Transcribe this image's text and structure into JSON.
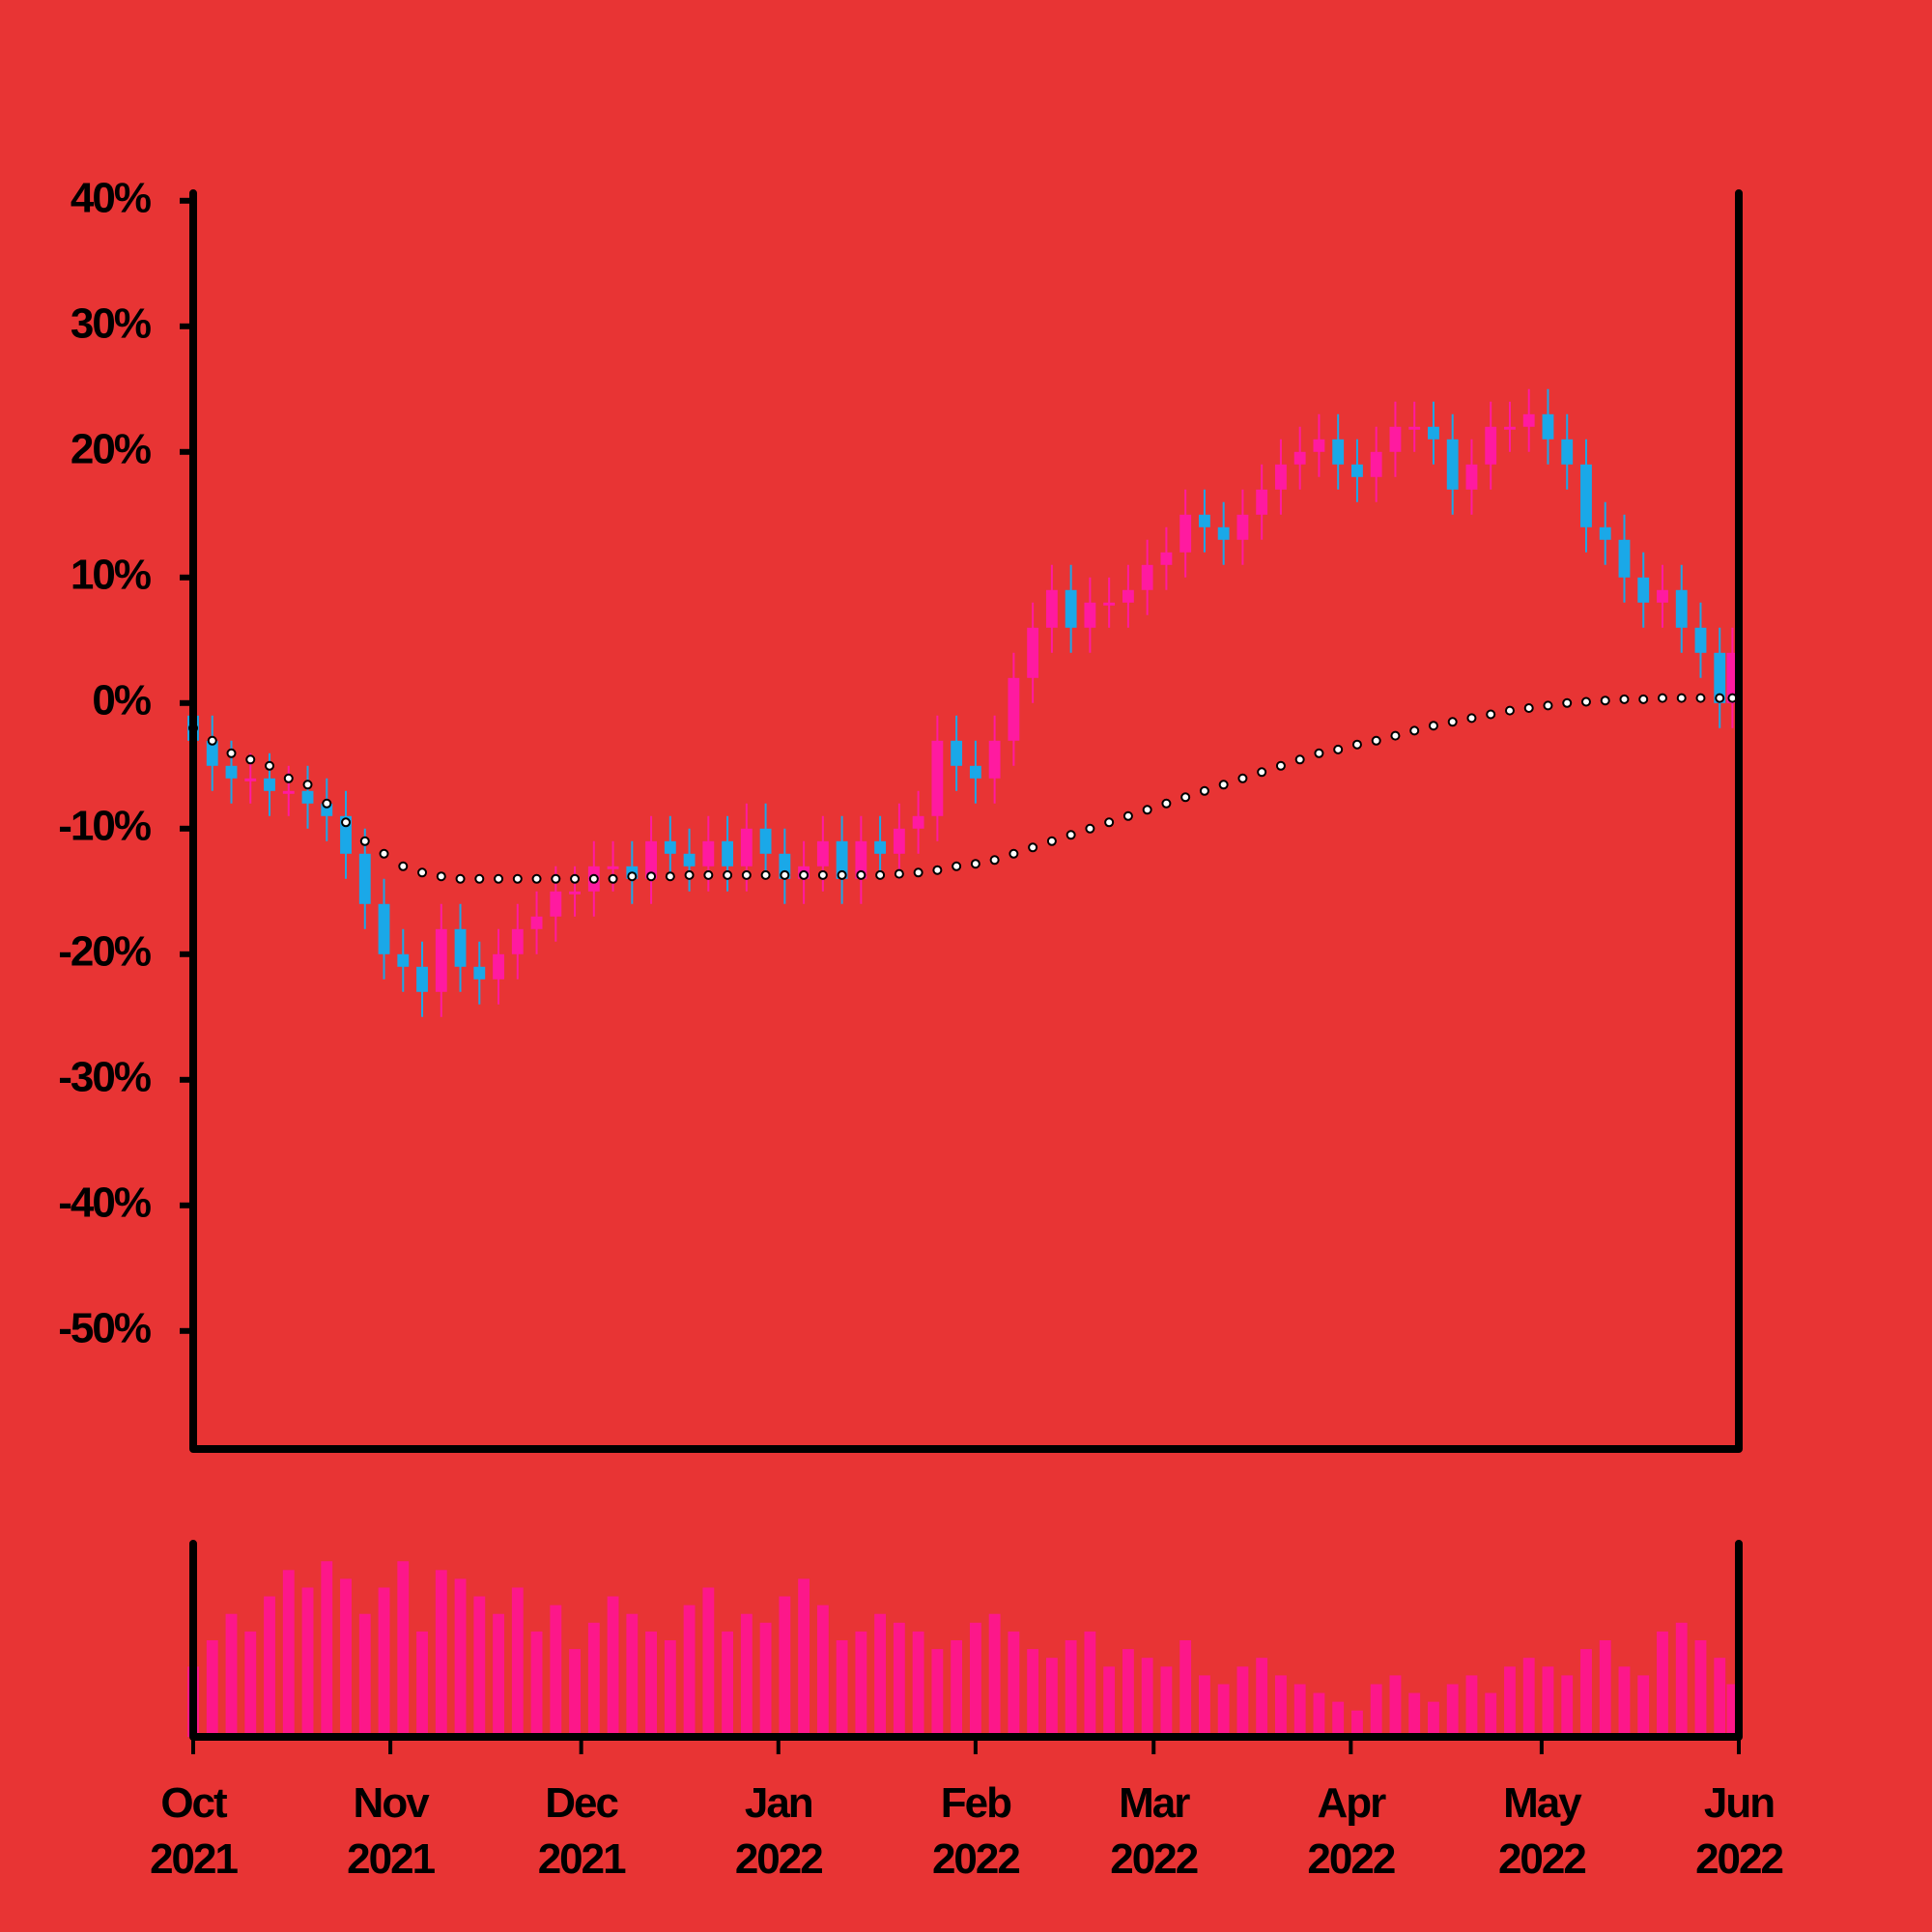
{
  "chart_data": {
    "type": "candlestick",
    "x": [
      0,
      3,
      6,
      9,
      12,
      15,
      18,
      21,
      24,
      27,
      30,
      33,
      36,
      39,
      42,
      45,
      48,
      51,
      54,
      57,
      60,
      63,
      66,
      69,
      72,
      75,
      78,
      81,
      84,
      87,
      90,
      93,
      96,
      99,
      102,
      105,
      108,
      111,
      114,
      117,
      120,
      123,
      126,
      129,
      132,
      135,
      138,
      141,
      144,
      147,
      150,
      153,
      156,
      159,
      162,
      165,
      168,
      171,
      174,
      177,
      180,
      183,
      186,
      189,
      192,
      195,
      198,
      201,
      204,
      207,
      210,
      213,
      216,
      219,
      222,
      225,
      228,
      231,
      234,
      237,
      240,
      242
    ],
    "open": [
      -1,
      -3,
      -5,
      -6,
      -6,
      -7,
      -7,
      -8,
      -9,
      -12,
      -16,
      -20,
      -21,
      -23,
      -18,
      -21,
      -22,
      -20,
      -18,
      -17,
      -15,
      -15,
      -13,
      -13,
      -14,
      -11,
      -12,
      -13,
      -11,
      -13,
      -10,
      -12,
      -14,
      -13,
      -11,
      -14,
      -11,
      -12,
      -10,
      -9,
      -3,
      -5,
      -6,
      -3,
      2,
      6,
      9,
      6,
      8,
      8,
      9,
      11,
      12,
      15,
      14,
      13,
      15,
      17,
      19,
      20,
      21,
      19,
      18,
      20,
      22,
      22,
      21,
      17,
      19,
      22,
      22,
      23,
      21,
      19,
      14,
      13,
      10,
      8,
      9,
      6,
      4,
      0
    ],
    "high": [
      1,
      -1,
      -3,
      -4,
      -4,
      -5,
      -5,
      -6,
      -7,
      -10,
      -14,
      -18,
      -19,
      -16,
      -16,
      -19,
      -18,
      -16,
      -15,
      -13,
      -13,
      -11,
      -11,
      -11,
      -9,
      -9,
      -10,
      -9,
      -9,
      -8,
      -8,
      -10,
      -11,
      -9,
      -9,
      -9,
      -9,
      -8,
      -7,
      -1,
      -1,
      -3,
      -1,
      4,
      8,
      11,
      11,
      10,
      10,
      11,
      13,
      14,
      17,
      17,
      16,
      17,
      19,
      21,
      22,
      23,
      23,
      21,
      22,
      24,
      24,
      24,
      23,
      21,
      24,
      24,
      25,
      25,
      23,
      21,
      16,
      15,
      12,
      11,
      11,
      8,
      6,
      6
    ],
    "low": [
      -5,
      -7,
      -8,
      -8,
      -9,
      -9,
      -10,
      -11,
      -14,
      -18,
      -22,
      -23,
      -25,
      -25,
      -23,
      -24,
      -24,
      -22,
      -20,
      -19,
      -17,
      -17,
      -15,
      -16,
      -16,
      -14,
      -15,
      -15,
      -15,
      -15,
      -14,
      -16,
      -16,
      -15,
      -16,
      -16,
      -14,
      -14,
      -12,
      -11,
      -7,
      -8,
      -8,
      -5,
      0,
      4,
      4,
      4,
      6,
      6,
      7,
      9,
      10,
      12,
      11,
      11,
      13,
      15,
      17,
      18,
      17,
      16,
      16,
      18,
      20,
      19,
      15,
      15,
      17,
      20,
      20,
      19,
      17,
      12,
      11,
      8,
      6,
      6,
      4,
      2,
      -2,
      -2
    ],
    "close": [
      -3,
      -5,
      -6,
      -6,
      -7,
      -7,
      -8,
      -9,
      -12,
      -16,
      -20,
      -21,
      -23,
      -18,
      -21,
      -22,
      -20,
      -18,
      -17,
      -15,
      -15,
      -13,
      -13,
      -14,
      -11,
      -12,
      -13,
      -11,
      -13,
      -10,
      -12,
      -14,
      -13,
      -11,
      -14,
      -11,
      -12,
      -10,
      -9,
      -3,
      -5,
      -6,
      -3,
      2,
      6,
      9,
      6,
      8,
      8,
      9,
      11,
      12,
      15,
      14,
      13,
      15,
      17,
      19,
      20,
      21,
      19,
      18,
      20,
      22,
      22,
      21,
      17,
      19,
      22,
      22,
      23,
      21,
      19,
      14,
      13,
      10,
      8,
      9,
      6,
      4,
      0,
      4
    ],
    "up_color": "#ff1aa0",
    "down_color": "#1aa8e8",
    "xlim": [
      0,
      243
    ],
    "xticks": [
      {
        "value": 0,
        "label": "Oct 2021"
      },
      {
        "value": 31,
        "label": "Nov 2021"
      },
      {
        "value": 61,
        "label": "Dec 2021"
      },
      {
        "value": 92,
        "label": "Jan 2022"
      },
      {
        "value": 123,
        "label": "Feb 2022"
      },
      {
        "value": 151,
        "label": "Mar 2022"
      },
      {
        "value": 182,
        "label": "Apr 2022"
      },
      {
        "value": 212,
        "label": "May 2022"
      },
      {
        "value": 243,
        "label": "Jun 2022"
      }
    ],
    "ylim": [
      -59.4,
      40.6
    ],
    "yticks": [
      {
        "value": 40,
        "label": "40%"
      },
      {
        "value": 30,
        "label": "30%"
      },
      {
        "value": 20,
        "label": "20%"
      },
      {
        "value": 10,
        "label": "10%"
      },
      {
        "value": 0,
        "label": "0%"
      },
      {
        "value": -10,
        "label": "-10%"
      },
      {
        "value": -20,
        "label": "-20%"
      },
      {
        "value": -30,
        "label": "-30%"
      },
      {
        "value": -40,
        "label": "-40%"
      },
      {
        "value": -50,
        "label": "-50%"
      }
    ],
    "moving_average": {
      "color": "#ffffff",
      "values": [
        -2,
        -3,
        -4,
        -4.5,
        -5,
        -6,
        -6.5,
        -8,
        -9.5,
        -11,
        -12,
        -13,
        -13.5,
        -13.8,
        -14,
        -14,
        -14,
        -14,
        -14,
        -14,
        -14,
        -14,
        -14,
        -13.8,
        -13.8,
        -13.8,
        -13.7,
        -13.7,
        -13.7,
        -13.7,
        -13.7,
        -13.7,
        -13.7,
        -13.7,
        -13.7,
        -13.7,
        -13.7,
        -13.6,
        -13.5,
        -13.3,
        -13,
        -12.8,
        -12.5,
        -12,
        -11.5,
        -11,
        -10.5,
        -10,
        -9.5,
        -9,
        -8.5,
        -8,
        -7.5,
        -7,
        -6.5,
        -6,
        -5.5,
        -5,
        -4.5,
        -4,
        -3.7,
        -3.3,
        -3,
        -2.6,
        -2.2,
        -1.8,
        -1.5,
        -1.2,
        -0.9,
        -0.6,
        -0.4,
        -0.2,
        0,
        0.1,
        0.2,
        0.3,
        0.3,
        0.4,
        0.4,
        0.4,
        0.4,
        0.4
      ]
    },
    "volume": {
      "color": "#ff1493",
      "ylim": [
        0,
        110
      ],
      "values": [
        40,
        55,
        70,
        60,
        80,
        95,
        85,
        100,
        90,
        70,
        85,
        100,
        60,
        95,
        90,
        80,
        70,
        85,
        60,
        75,
        50,
        65,
        80,
        70,
        60,
        55,
        75,
        85,
        60,
        70,
        65,
        80,
        90,
        75,
        55,
        60,
        70,
        65,
        60,
        50,
        55,
        65,
        70,
        60,
        50,
        45,
        55,
        60,
        40,
        50,
        45,
        40,
        55,
        35,
        30,
        40,
        45,
        35,
        30,
        25,
        20,
        15,
        30,
        35,
        25,
        20,
        30,
        35,
        25,
        40,
        45,
        40,
        35,
        50,
        55,
        40,
        35,
        60,
        65,
        55,
        45,
        30
      ]
    }
  }
}
